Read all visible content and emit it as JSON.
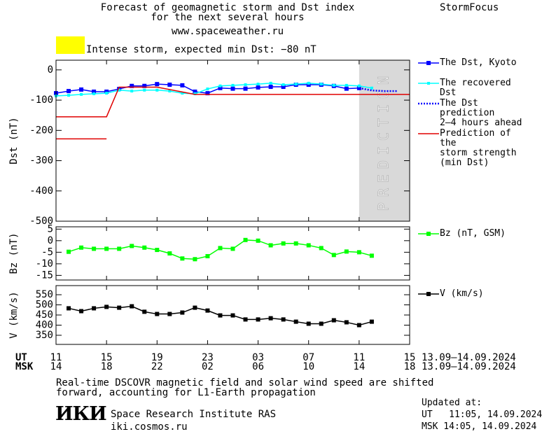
{
  "header": {
    "title": "Forecast of geomagnetic storm and Dst index\nfor the next several hours",
    "url": "www.spaceweather.ru",
    "brand": "StormFocus"
  },
  "alert": {
    "color": "#ffff00",
    "text": "Intense storm, expected min Dst: −80 nT"
  },
  "chart_data": [
    {
      "type": "line",
      "ylabel": "Dst (nT)",
      "xlim": [
        0,
        28
      ],
      "ylim": [
        -500,
        32
      ],
      "yticks": [
        0,
        -100,
        -200,
        -300,
        -400,
        -500
      ],
      "band": {
        "x": [
          24,
          28
        ],
        "label": "PREDICTION",
        "color": "#d9d9d9"
      },
      "series": [
        {
          "name": "The Dst, Kyoto",
          "color": "#0000ff",
          "marker": "square",
          "x": [
            0,
            1,
            2,
            3,
            4,
            5,
            6,
            7,
            8,
            9,
            10,
            11,
            12,
            13,
            14,
            15,
            16,
            17,
            18,
            19,
            20,
            21,
            22,
            23,
            24
          ],
          "values": [
            -77,
            -70,
            -65,
            -72,
            -72,
            -63,
            -53,
            -53,
            -47,
            -49,
            -51,
            -72,
            -77,
            -60,
            -62,
            -62,
            -58,
            -56,
            -56,
            -49,
            -49,
            -49,
            -53,
            -62,
            -60
          ]
        },
        {
          "name": "The recovered Dst",
          "color": "#00ffff",
          "marker": "small-square",
          "x": [
            0,
            1,
            2,
            3,
            4,
            5,
            6,
            7,
            8,
            9,
            10,
            11,
            12,
            13,
            14,
            15,
            16,
            17,
            18,
            19,
            20,
            21,
            22,
            23,
            24,
            25
          ],
          "values": [
            -86,
            -84,
            -81,
            -79,
            -77,
            -67,
            -70,
            -67,
            -67,
            -70,
            -77,
            -79,
            -63,
            -53,
            -51,
            -49,
            -47,
            -44,
            -49,
            -47,
            -44,
            -47,
            -51,
            -51,
            -53,
            -60
          ]
        },
        {
          "name": "The Dst prediction\n2–4 hours ahead",
          "color": "#0000ff",
          "dash": "dotted",
          "x": [
            24,
            25,
            26,
            27
          ],
          "values": [
            -60,
            -68,
            -70,
            -70
          ]
        },
        {
          "name": "Prediction of the\nstorm strength\n(min Dst)",
          "color": "#e00000",
          "x": [
            0,
            4,
            5,
            8,
            11,
            28,
            null,
            0,
            4
          ],
          "values": [
            -155,
            -155,
            -57,
            -57,
            -81,
            -81,
            null,
            -228,
            -228
          ]
        }
      ]
    },
    {
      "type": "line",
      "ylabel": "Bz (nT)",
      "xlim": [
        0,
        28
      ],
      "ylim": [
        -17,
        6
      ],
      "yticks": [
        5,
        0,
        -5,
        -10,
        -15
      ],
      "series": [
        {
          "name": "Bz (nT, GSM)",
          "color": "#00ff00",
          "marker": "square",
          "x": [
            1,
            2,
            3,
            4,
            5,
            6,
            7,
            8,
            9,
            10,
            11,
            12,
            13,
            14,
            15,
            16,
            17,
            18,
            19,
            20,
            21,
            22,
            23,
            24,
            25
          ],
          "values": [
            -4.8,
            -3,
            -3.5,
            -3.5,
            -3.5,
            -2.3,
            -3,
            -4,
            -5.5,
            -7.7,
            -8,
            -6.7,
            -3.2,
            -3.5,
            0.3,
            0,
            -2,
            -1.2,
            -1.2,
            -2,
            -3.2,
            -6.2,
            -4.7,
            -5,
            -6.5
          ]
        }
      ]
    },
    {
      "type": "line",
      "ylabel": "V (km/s)",
      "xlim": [
        0,
        28
      ],
      "ylim": [
        305,
        595
      ],
      "yticks": [
        550,
        500,
        450,
        400,
        350
      ],
      "xlabel": "UT",
      "xticks": [
        {
          "value": 0,
          "label": "11"
        },
        {
          "value": 4,
          "label": "15"
        },
        {
          "value": 8,
          "label": "19"
        },
        {
          "value": 12,
          "label": "23"
        },
        {
          "value": 16,
          "label": "03"
        },
        {
          "value": 20,
          "label": "07"
        },
        {
          "value": 24,
          "label": "11"
        },
        {
          "value": 28,
          "label": "15"
        }
      ],
      "xdate": "13.09–14.09.2024",
      "x2label": "MSK",
      "x2ticks": [
        {
          "value": 0,
          "label": "14"
        },
        {
          "value": 4,
          "label": "18"
        },
        {
          "value": 8,
          "label": "22"
        },
        {
          "value": 12,
          "label": "02"
        },
        {
          "value": 16,
          "label": "06"
        },
        {
          "value": 20,
          "label": "10"
        },
        {
          "value": 24,
          "label": "14"
        },
        {
          "value": 28,
          "label": "18"
        }
      ],
      "x2date": "13.09–14.09.2024",
      "series": [
        {
          "name": "V (km/s)",
          "color": "#000000",
          "marker": "square",
          "x": [
            1,
            2,
            3,
            4,
            5,
            6,
            7,
            8,
            9,
            10,
            11,
            12,
            13,
            14,
            15,
            16,
            17,
            18,
            19,
            20,
            21,
            22,
            23,
            24,
            25
          ],
          "values": [
            483,
            469,
            483,
            490,
            486,
            493,
            466,
            455,
            455,
            462,
            486,
            472,
            448,
            448,
            428,
            428,
            434,
            428,
            417,
            407,
            407,
            424,
            414,
            400,
            417
          ]
        }
      ]
    }
  ],
  "footer": {
    "note": "Real-time DSCOVR magnetic field and solar wind speed are shifted\nforward, accounting for L1-Earth propagation",
    "logo": "ИКИ",
    "institute": "Space Research Institute RAS",
    "site": "iki.cosmos.ru",
    "updated": "Updated at:",
    "updated_ut": "UT   11:05, 14.09.2024",
    "updated_msk": "MSK 14:05, 14.09.2024"
  }
}
